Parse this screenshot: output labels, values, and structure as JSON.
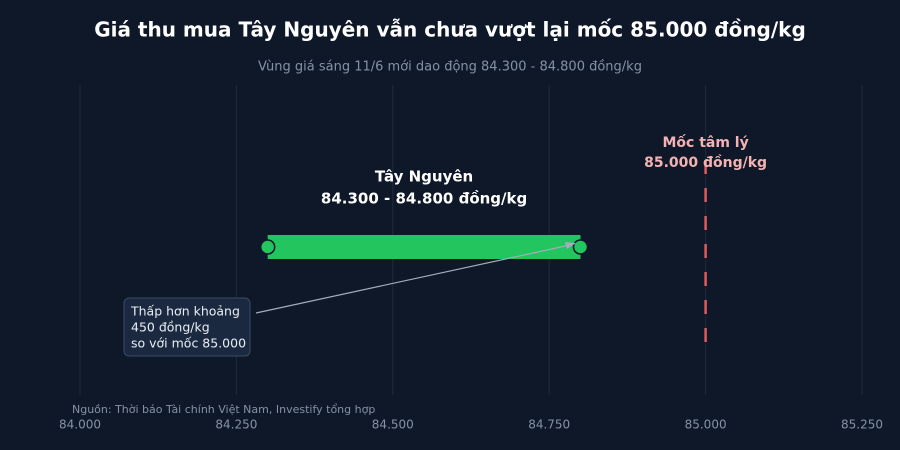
{
  "chart_data": {
    "type": "range",
    "title": "Giá thu mua Tây Nguyên vẫn chưa vượt lại mốc 85.000 đồng/kg",
    "subtitle": "Vùng giá sáng 11/6 mới dao động 84.300 - 84.800 đồng/kg",
    "series": [
      {
        "name": "Tây Nguyên",
        "color": "#22c55e",
        "low": 84300,
        "high": 84800,
        "range_label": "84.300 - 84.800 đồng/kg"
      }
    ],
    "reference_line": {
      "value": 85000,
      "color": "#e05a5a",
      "label": [
        "Mốc tâm lý",
        "85.000 đồng/kg"
      ]
    },
    "annotation": [
      "Thấp hơn khoảng",
      "450 đồng/kg",
      "so với mốc 85.000"
    ],
    "source": "Nguồn: Thời báo Tài chính Việt Nam, Investify tổng hợp",
    "xlim": [
      84000,
      85250
    ],
    "xticks": [
      {
        "value": 84000,
        "label": "84.000"
      },
      {
        "value": 84250,
        "label": "84.250"
      },
      {
        "value": 84500,
        "label": "84.500"
      },
      {
        "value": 84750,
        "label": "84.750"
      },
      {
        "value": 85000,
        "label": "85.000"
      },
      {
        "value": 85250,
        "label": "85.250"
      }
    ],
    "grid": true
  }
}
